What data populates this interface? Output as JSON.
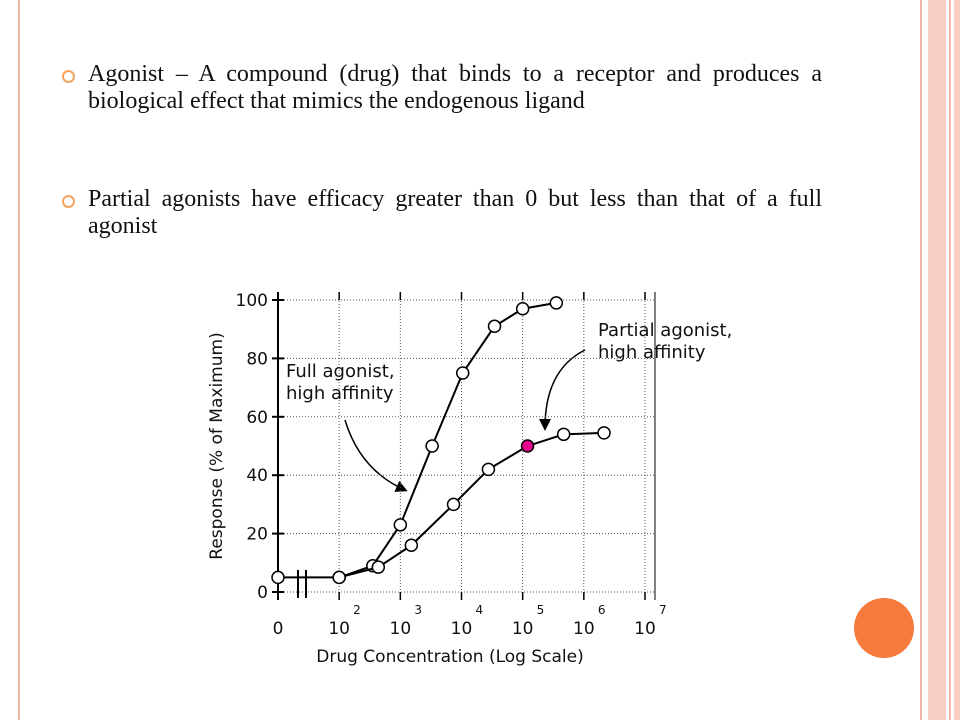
{
  "bullets": [
    "Agonist – A compound (drug) that binds to a receptor and produces a biological effect that mimics the endogenous ligand",
    "Partial agonists have efficacy greater than 0 but less than that of a full agonist"
  ],
  "chart_data": {
    "type": "line",
    "x_label": "Drug Concentration (Log Scale)",
    "y_label": "Response (% of Maximum)",
    "xlim": [
      1,
      7
    ],
    "ylim": [
      0,
      100
    ],
    "xticks": [
      {
        "value": 1,
        "label": "0"
      },
      {
        "value": 2,
        "label": "10",
        "sup": "2"
      },
      {
        "value": 3,
        "label": "10",
        "sup": "3"
      },
      {
        "value": 4,
        "label": "10",
        "sup": "4"
      },
      {
        "value": 5,
        "label": "10",
        "sup": "5"
      },
      {
        "value": 6,
        "label": "10",
        "sup": "6"
      },
      {
        "value": 7,
        "label": "10",
        "sup": "7"
      }
    ],
    "yticks": [
      0,
      20,
      40,
      60,
      80,
      100
    ],
    "grid": true,
    "series": [
      {
        "color": "#000000",
        "x": [
          1,
          2,
          2.55,
          3,
          3.52,
          4.02,
          4.54,
          5,
          5.55
        ],
        "values": [
          5,
          5,
          9,
          23,
          50,
          75,
          91,
          97,
          99
        ]
      },
      {
        "color": "#000000",
        "x": [
          2,
          2.64,
          3.18,
          3.87,
          4.44,
          5.08,
          5.67,
          6.33
        ],
        "values": [
          5,
          8.5,
          16,
          30,
          42,
          50,
          54,
          54.5
        ]
      }
    ],
    "highlight": {
      "series": 1,
      "index": 5,
      "color": "#e6008c"
    },
    "annotations": [
      {
        "lines": [
          "Full agonist,",
          "high affinity"
        ]
      },
      {
        "lines": [
          "Partial agonist,",
          "high affinity"
        ]
      }
    ]
  }
}
